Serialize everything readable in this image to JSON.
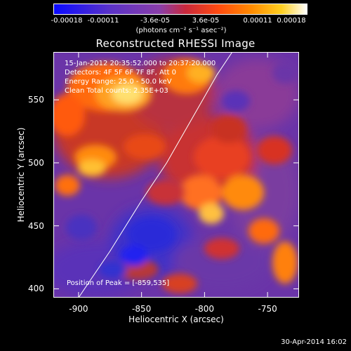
{
  "colorbar": {
    "tick_labels": [
      "-0.00018",
      "-0.00011",
      "-3.6e-05",
      "3.6e-05",
      "0.00011",
      "0.00018"
    ],
    "tick_values": [
      -0.00018,
      -0.00011,
      -3.6e-05,
      3.6e-05,
      0.00011,
      0.00018
    ],
    "range": [
      -0.00018,
      0.00018
    ],
    "units": "(photons cm⁻² s⁻¹ asec⁻²)",
    "colors": [
      "#0a0aff",
      "#5a32c8",
      "#8a3ea8",
      "#c8283c",
      "#ff4a10",
      "#ff8a00",
      "#ffd020",
      "#ffffff"
    ]
  },
  "title": "Reconstructed RHESSI Image",
  "info_lines": [
    "15-Jan-2012 20:35:52.000 to 20:37:20.000",
    "Detectors: 4F 5F 6F 7F 8F, Att 0",
    "Energy Range: 25.0 - 50.0 keV",
    "Clean     Total counts: 2.35E+03"
  ],
  "peak_text": "Position of Peak = [-859,535]",
  "axes": {
    "xlabel": "Heliocentric X (arcsec)",
    "ylabel": "Heliocentric Y (arcsec)",
    "xlim": [
      -920,
      -725
    ],
    "ylim": [
      393,
      588
    ],
    "xticks": [
      {
        "value": -900,
        "label": "-900"
      },
      {
        "value": -850,
        "label": "-850"
      },
      {
        "value": -800,
        "label": "-800"
      },
      {
        "value": -750,
        "label": "-750"
      }
    ],
    "yticks": [
      {
        "value": 400,
        "label": "400"
      },
      {
        "value": 450,
        "label": "450"
      },
      {
        "value": 500,
        "label": "500"
      },
      {
        "value": 550,
        "label": "550"
      }
    ]
  },
  "limb": {
    "points": [
      [
        -900,
        393
      ],
      [
        -875,
        430
      ],
      [
        -850,
        470
      ],
      [
        -830,
        500
      ],
      [
        -810,
        535
      ],
      [
        -790,
        570
      ],
      [
        -778,
        588
      ]
    ]
  },
  "footer": "30-Apr-2014 16:02"
}
